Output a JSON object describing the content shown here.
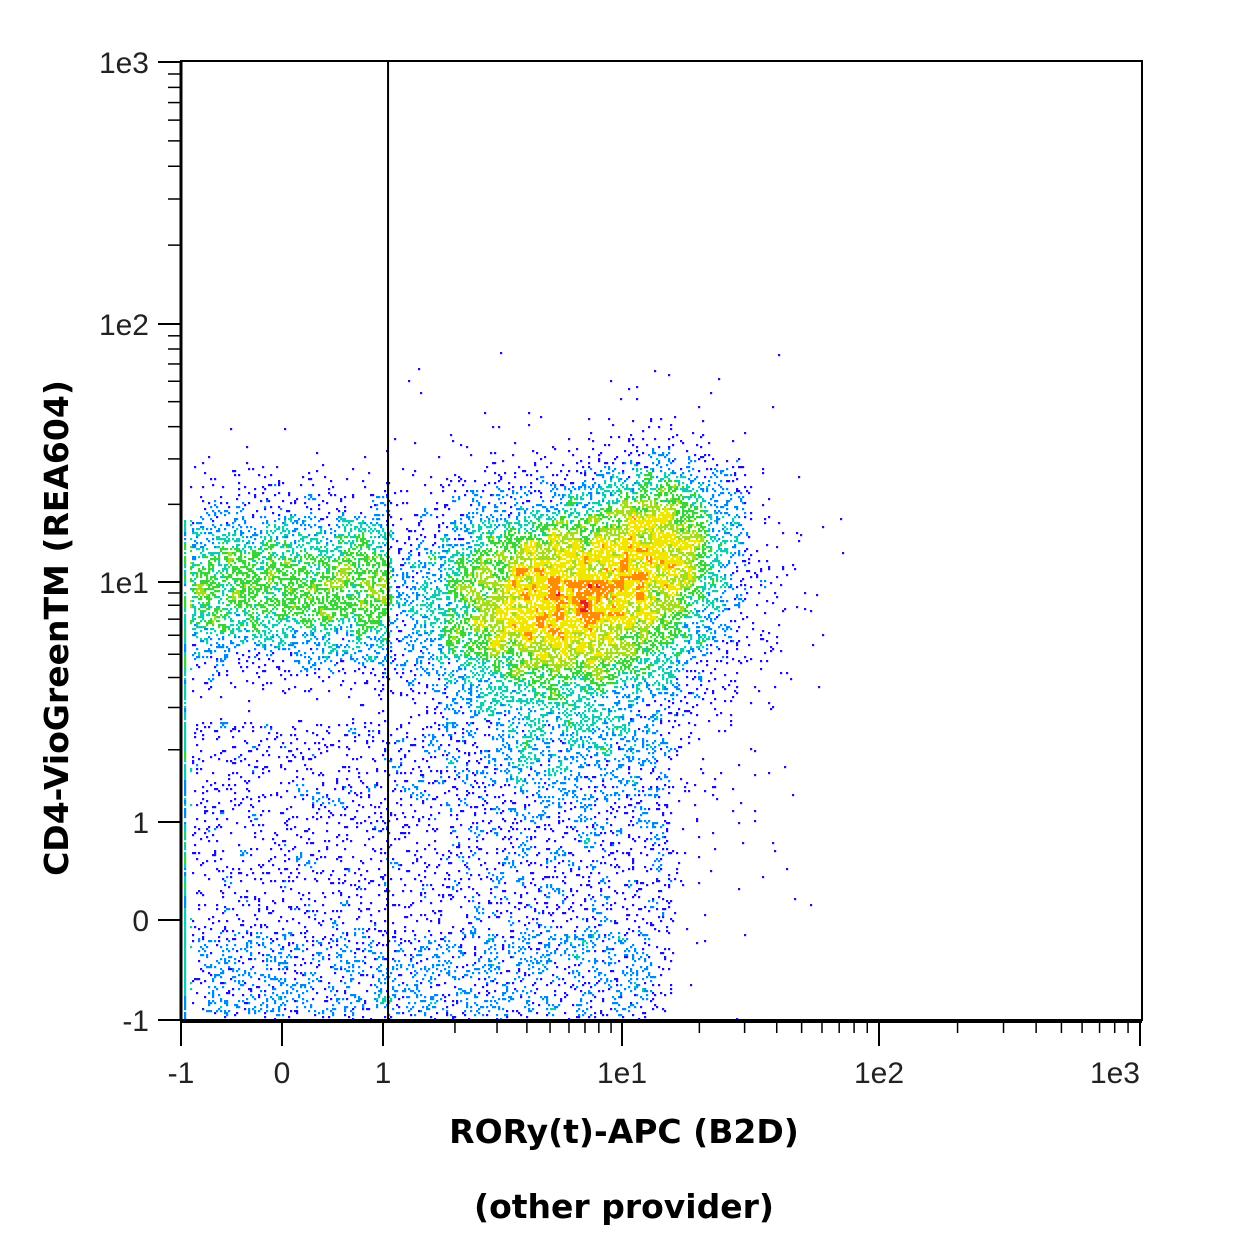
{
  "chart_data": {
    "type": "scatter",
    "subtype": "flow-cytometry density dot plot (hlog/biexponential axes)",
    "xlabel": "RORy(t)-APC (B2D)",
    "xlabel_line2": "(other provider)",
    "ylabel": "CD4-VioGreenTM (REA604)",
    "x_scale": "biexponential",
    "y_scale": "biexponential",
    "xlim": [
      -1,
      1000
    ],
    "ylim": [
      -1,
      1000
    ],
    "x_ticks": [
      {
        "label": "-1",
        "value": -1
      },
      {
        "label": "0",
        "value": 0
      },
      {
        "label": "1",
        "value": 1
      },
      {
        "label": "1e1",
        "value": 10
      },
      {
        "label": "1e2",
        "value": 100
      },
      {
        "label": "1e3",
        "value": 1000
      }
    ],
    "y_ticks": [
      {
        "label": "-1",
        "value": -1
      },
      {
        "label": "0",
        "value": 0
      },
      {
        "label": "1",
        "value": 1
      },
      {
        "label": "1e1",
        "value": 10
      },
      {
        "label": "1e2",
        "value": 100
      },
      {
        "label": "1e3",
        "value": 1000
      }
    ],
    "gate_line": {
      "orientation": "vertical",
      "x": 1.05
    },
    "colormap": [
      "#1a10e6",
      "#0088f0",
      "#16c8b0",
      "#3cd23c",
      "#a6dc1e",
      "#f0e600",
      "#ff8c00",
      "#e61e1e"
    ],
    "populations": [
      {
        "kind": "main",
        "center_x": 5.3,
        "center_y": 9.2,
        "spread": "x 2.4–22, y 1.8–20",
        "peak_density": "red"
      },
      {
        "kind": "left-band",
        "x_range": [
          -1,
          1.1
        ],
        "center_y": 10,
        "peak_density": "blue"
      },
      {
        "kind": "low-scatter",
        "x_range": [
          -1,
          14
        ],
        "y_range": [
          -1,
          2
        ],
        "peak_density": "blue"
      }
    ],
    "grid": false,
    "legend": "none"
  }
}
